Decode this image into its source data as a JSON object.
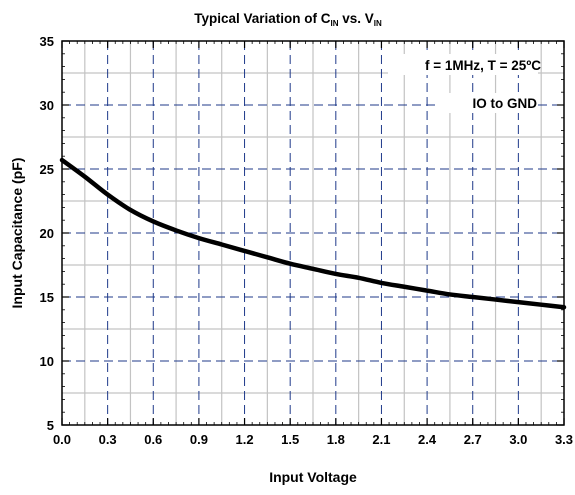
{
  "chart_data": {
    "type": "line",
    "title": {
      "main": "Typical Variation of C",
      "sub1": "IN",
      "mid": " vs. V",
      "sub2": "IN"
    },
    "xlabel": "Input Voltage",
    "ylabel": "Input Capacitance (pF)",
    "xlim": [
      0.0,
      3.3
    ],
    "ylim": [
      5,
      35
    ],
    "x_ticks": [
      "0.0",
      "0.3",
      "0.6",
      "0.9",
      "1.2",
      "1.5",
      "1.8",
      "2.1",
      "2.4",
      "2.7",
      "3.0",
      "3.3"
    ],
    "y_ticks": [
      "5",
      "10",
      "15",
      "20",
      "25",
      "30",
      "35"
    ],
    "grid": true,
    "annotations": [
      "f = 1MHz, T = 25ºC",
      "IO to GND"
    ],
    "series": [
      {
        "x": [
          0.0,
          0.15,
          0.3,
          0.45,
          0.6,
          0.75,
          0.9,
          1.05,
          1.2,
          1.35,
          1.5,
          1.65,
          1.8,
          1.95,
          2.1,
          2.25,
          2.4,
          2.55,
          2.7,
          2.85,
          3.0,
          3.15,
          3.3
        ],
        "values": [
          25.7,
          24.4,
          23.0,
          21.8,
          20.9,
          20.2,
          19.6,
          19.1,
          18.6,
          18.1,
          17.6,
          17.2,
          16.8,
          16.5,
          16.1,
          15.8,
          15.5,
          15.2,
          15.0,
          14.8,
          14.6,
          14.4,
          14.2
        ],
        "color": "#000000"
      }
    ]
  }
}
